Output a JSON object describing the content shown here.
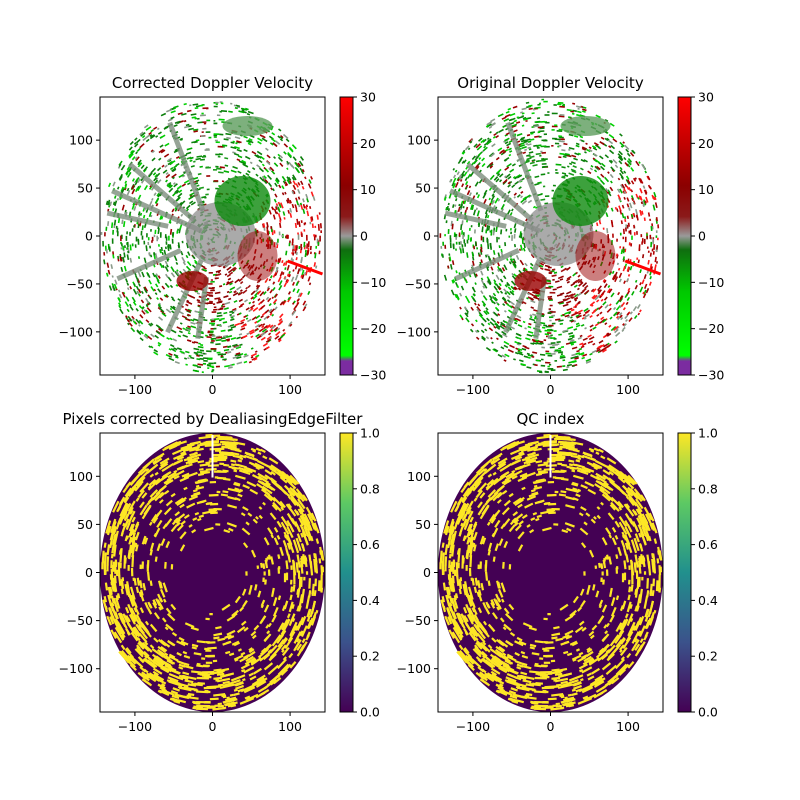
{
  "chart_data": [
    {
      "type": "heatmap",
      "title": "Corrected Doppler Velocity",
      "x_ticks": [
        -100,
        0,
        100
      ],
      "y_ticks": [
        100,
        50,
        0,
        -50,
        -100
      ],
      "xlim": [
        -145,
        145
      ],
      "ylim": [
        -145,
        145
      ],
      "colorbar": {
        "ticks": [
          30,
          20,
          10,
          0,
          -10,
          -20,
          -30
        ],
        "range": [
          -30,
          30
        ],
        "colormap": "diverging-doppler"
      },
      "range_rings_visible": false
    },
    {
      "type": "heatmap",
      "title": "Original Doppler Velocity",
      "x_ticks": [
        -100,
        0,
        100
      ],
      "y_ticks": [
        100,
        50,
        0,
        -50,
        -100
      ],
      "xlim": [
        -145,
        145
      ],
      "ylim": [
        -145,
        145
      ],
      "colorbar": {
        "ticks": [
          30,
          20,
          10,
          0,
          -10,
          -20,
          -30
        ],
        "range": [
          -30,
          30
        ],
        "colormap": "diverging-doppler"
      }
    },
    {
      "type": "heatmap",
      "title": "Pixels corrected by DealiasingEdgeFilter",
      "x_ticks": [
        -100,
        0,
        100
      ],
      "y_ticks": [
        100,
        50,
        0,
        -50,
        -100
      ],
      "xlim": [
        -145,
        145
      ],
      "ylim": [
        -145,
        145
      ],
      "colorbar": {
        "ticks": [
          "1.0",
          "0.8",
          "0.6",
          "0.4",
          "0.2",
          "0.0"
        ],
        "range": [
          0,
          1
        ],
        "colormap": "viridis"
      }
    },
    {
      "type": "heatmap",
      "title": "QC index",
      "x_ticks": [
        -100,
        0,
        100
      ],
      "y_ticks": [
        100,
        50,
        0,
        -50,
        -100
      ],
      "xlim": [
        -145,
        145
      ],
      "ylim": [
        -145,
        145
      ],
      "colorbar": {
        "ticks": [
          "1.0",
          "0.8",
          "0.6",
          "0.4",
          "0.2",
          "0.0"
        ],
        "range": [
          0,
          1
        ],
        "colormap": "viridis"
      }
    }
  ],
  "colors": {
    "doppler_negative": "#00c800",
    "doppler_zero": "#9a9a9a",
    "doppler_positive": "#ff0000",
    "doppler_min": "#7b2ca0",
    "viridis_low": "#440154",
    "viridis_high": "#fde725"
  }
}
